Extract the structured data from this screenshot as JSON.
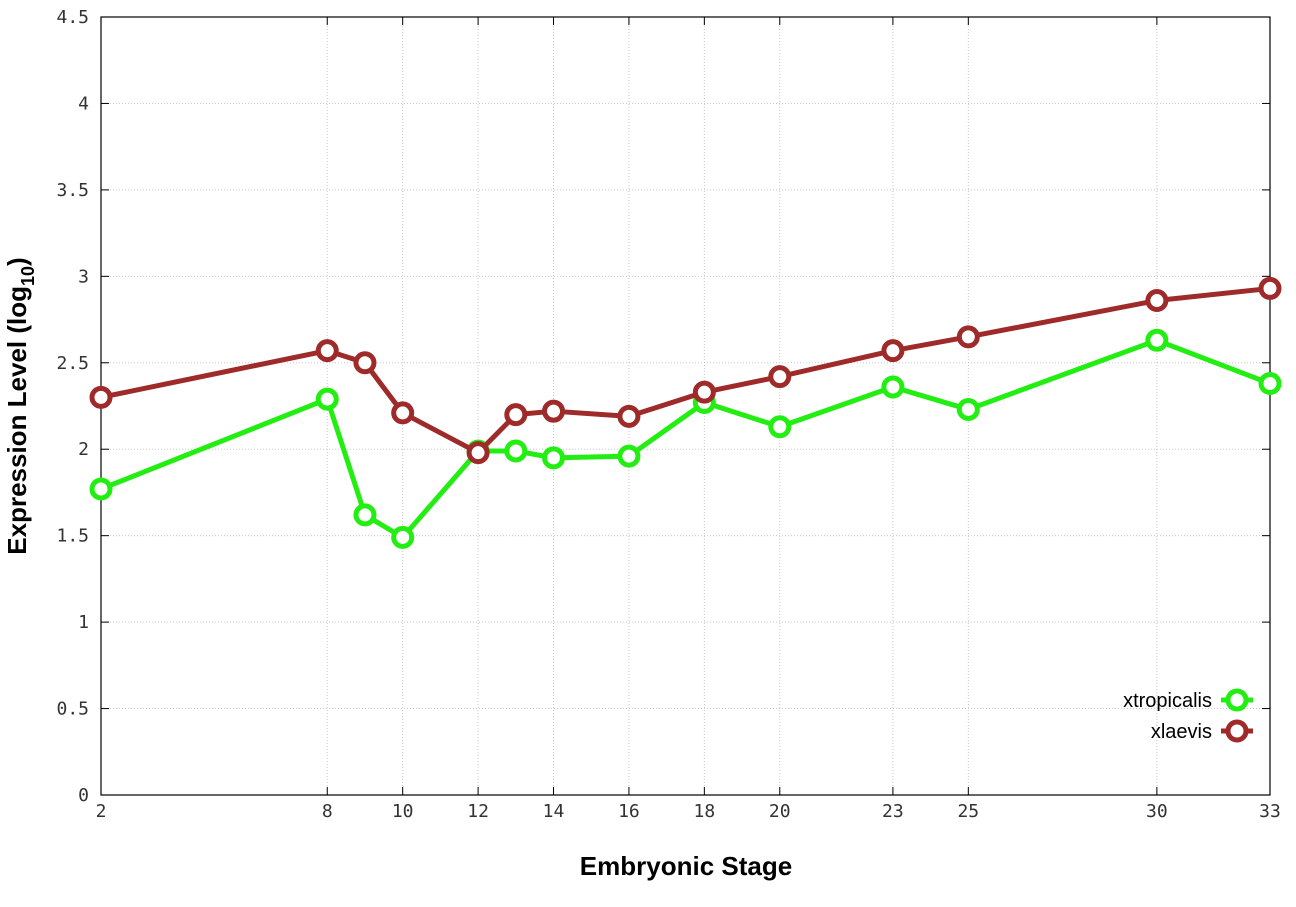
{
  "chart_data": {
    "type": "line",
    "title": "",
    "xlabel": "Embryonic Stage",
    "ylabel": "Expression Level (log",
    "ylabel_subscript": "10",
    "ylabel_close": ")",
    "x": [
      2,
      8,
      9,
      10,
      12,
      13,
      14,
      16,
      18,
      20,
      23,
      25,
      30,
      33
    ],
    "x_ticks": [
      2,
      8,
      10,
      12,
      14,
      16,
      18,
      20,
      23,
      25,
      30,
      33
    ],
    "y_ticks": [
      "0",
      "0.5",
      "1",
      "1.5",
      "2",
      "2.5",
      "3",
      "3.5",
      "4",
      "4.5"
    ],
    "xlim": [
      2,
      33
    ],
    "ylim": [
      0,
      4.5
    ],
    "grid": true,
    "legend_position": "bottom-right",
    "series": [
      {
        "name": "xtropicalis",
        "color": "#22ee11",
        "values": [
          1.77,
          2.29,
          1.62,
          1.49,
          1.99,
          1.99,
          1.95,
          1.96,
          2.27,
          2.13,
          2.36,
          2.23,
          2.63,
          2.38
        ]
      },
      {
        "name": "xlaevis",
        "color": "#9e2a2a",
        "values": [
          2.3,
          2.57,
          2.5,
          2.21,
          1.98,
          2.2,
          2.22,
          2.19,
          2.33,
          2.42,
          2.57,
          2.65,
          2.86,
          2.93
        ]
      }
    ]
  }
}
